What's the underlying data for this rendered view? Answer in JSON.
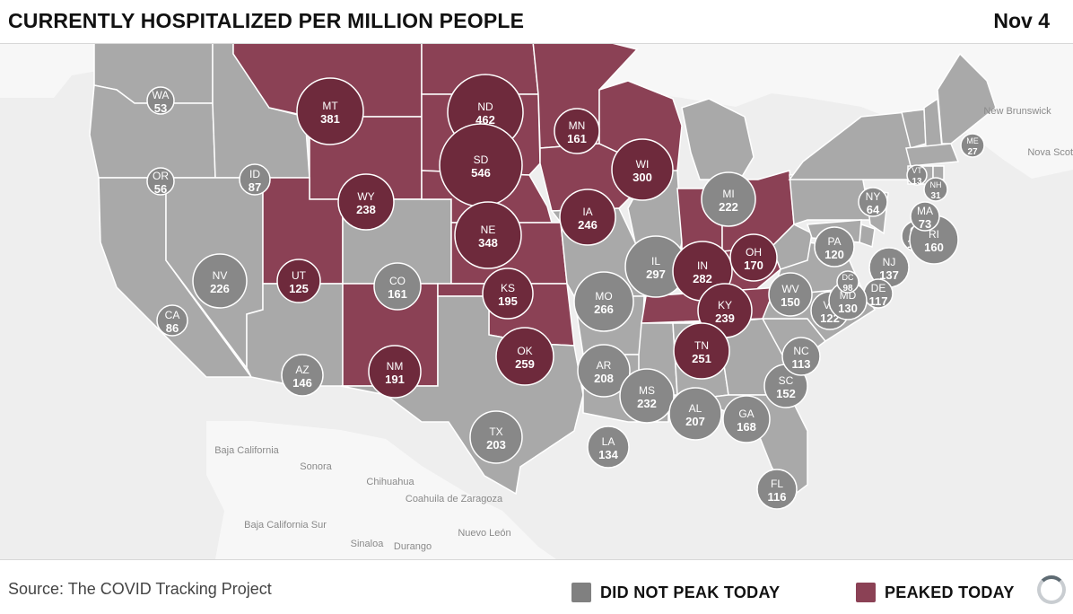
{
  "header": {
    "title": "CURRENTLY HOSPITALIZED PER MILLION PEOPLE",
    "date": "Nov 4"
  },
  "footer": {
    "source": "Source: The COVID Tracking Project"
  },
  "legend": [
    {
      "label": "DID NOT PEAK TODAY",
      "color": "#808080"
    },
    {
      "label": "PEAKED TODAY",
      "color": "#8b4155"
    }
  ],
  "colors": {
    "not_peak_fill": "#a9a9a9",
    "peak_fill": "#8b4155",
    "not_peak_bubble": "#888888",
    "peak_bubble": "#6e2a3c",
    "background": "#eeeeee"
  },
  "geo_labels": [
    "New Brunswick",
    "Nova Scotia",
    "Baja California",
    "Sonora",
    "Chihuahua",
    "Coahuila de Zaragoza",
    "Baja California Sur",
    "Sinaloa",
    "Durango",
    "Nuevo León"
  ],
  "states": [
    {
      "abbr": "WA",
      "value": 53,
      "peaked": false
    },
    {
      "abbr": "OR",
      "value": 56,
      "peaked": false
    },
    {
      "abbr": "CA",
      "value": 86,
      "peaked": false
    },
    {
      "abbr": "ID",
      "value": 87,
      "peaked": false
    },
    {
      "abbr": "NV",
      "value": 226,
      "peaked": false
    },
    {
      "abbr": "MT",
      "value": 381,
      "peaked": true
    },
    {
      "abbr": "WY",
      "value": 238,
      "peaked": true
    },
    {
      "abbr": "UT",
      "value": 125,
      "peaked": true
    },
    {
      "abbr": "AZ",
      "value": 146,
      "peaked": false
    },
    {
      "abbr": "CO",
      "value": 161,
      "peaked": false
    },
    {
      "abbr": "NM",
      "value": 191,
      "peaked": true
    },
    {
      "abbr": "ND",
      "value": 462,
      "peaked": true
    },
    {
      "abbr": "SD",
      "value": 546,
      "peaked": true
    },
    {
      "abbr": "NE",
      "value": 348,
      "peaked": true
    },
    {
      "abbr": "KS",
      "value": 195,
      "peaked": true
    },
    {
      "abbr": "OK",
      "value": 259,
      "peaked": true
    },
    {
      "abbr": "TX",
      "value": 203,
      "peaked": false
    },
    {
      "abbr": "MN",
      "value": 161,
      "peaked": true
    },
    {
      "abbr": "IA",
      "value": 246,
      "peaked": true
    },
    {
      "abbr": "MO",
      "value": 266,
      "peaked": false
    },
    {
      "abbr": "AR",
      "value": 208,
      "peaked": false
    },
    {
      "abbr": "LA",
      "value": 134,
      "peaked": false
    },
    {
      "abbr": "WI",
      "value": 300,
      "peaked": true
    },
    {
      "abbr": "IL",
      "value": 297,
      "peaked": false
    },
    {
      "abbr": "MI",
      "value": 222,
      "peaked": false
    },
    {
      "abbr": "IN",
      "value": 282,
      "peaked": true
    },
    {
      "abbr": "OH",
      "value": 170,
      "peaked": true
    },
    {
      "abbr": "KY",
      "value": 239,
      "peaked": true
    },
    {
      "abbr": "TN",
      "value": 251,
      "peaked": true
    },
    {
      "abbr": "MS",
      "value": 232,
      "peaked": false
    },
    {
      "abbr": "AL",
      "value": 207,
      "peaked": false
    },
    {
      "abbr": "GA",
      "value": 168,
      "peaked": false
    },
    {
      "abbr": "FL",
      "value": 116,
      "peaked": false
    },
    {
      "abbr": "SC",
      "value": 152,
      "peaked": false
    },
    {
      "abbr": "NC",
      "value": 113,
      "peaked": false
    },
    {
      "abbr": "VA",
      "value": 122,
      "peaked": false
    },
    {
      "abbr": "WV",
      "value": 150,
      "peaked": false
    },
    {
      "abbr": "PA",
      "value": 120,
      "peaked": false
    },
    {
      "abbr": "NY",
      "value": 64,
      "peaked": false
    },
    {
      "abbr": "NJ",
      "value": 137,
      "peaked": false
    },
    {
      "abbr": "DE",
      "value": 117,
      "peaked": false
    },
    {
      "abbr": "MD",
      "value": 130,
      "peaked": false
    },
    {
      "abbr": "DC",
      "value": 98,
      "peaked": false
    },
    {
      "abbr": "CT",
      "value": 105,
      "peaked": false
    },
    {
      "abbr": "RI",
      "value": 160,
      "peaked": false
    },
    {
      "abbr": "MA",
      "value": 73,
      "peaked": false
    },
    {
      "abbr": "VT",
      "value": 13,
      "peaked": false
    },
    {
      "abbr": "NH",
      "value": 31,
      "peaked": false
    },
    {
      "abbr": "ME",
      "value": 27,
      "peaked": false
    }
  ]
}
